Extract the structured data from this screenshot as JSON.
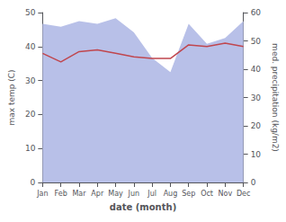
{
  "chart_data": {
    "type": "line",
    "xlabel": "date (month)",
    "ylabel": "max temp (C)",
    "y2label": "med. precipitation (kg/m2)",
    "categories": [
      "Jan",
      "Feb",
      "Mar",
      "Apr",
      "May",
      "Jun",
      "Jul",
      "Aug",
      "Sep",
      "Oct",
      "Nov",
      "Dec"
    ],
    "series": [
      {
        "type": "area",
        "axis": "y2",
        "color": "#b8c0e8",
        "values": [
          56,
          55,
          57,
          56,
          58,
          53,
          44,
          39,
          56,
          49,
          51,
          57
        ]
      },
      {
        "type": "line",
        "color": "#c0464e",
        "values": [
          38.0,
          35.5,
          38.5,
          39.0,
          38.0,
          37.0,
          36.5,
          36.5,
          40.5,
          40.0,
          41.0,
          40.0
        ]
      }
    ],
    "ylim": [
      0,
      50
    ],
    "yticks": [
      0,
      10,
      20,
      30,
      40,
      50
    ],
    "y2lim": [
      0,
      60
    ],
    "y2ticks": [
      0,
      10,
      20,
      30,
      40,
      50,
      60
    ],
    "grid": false
  }
}
